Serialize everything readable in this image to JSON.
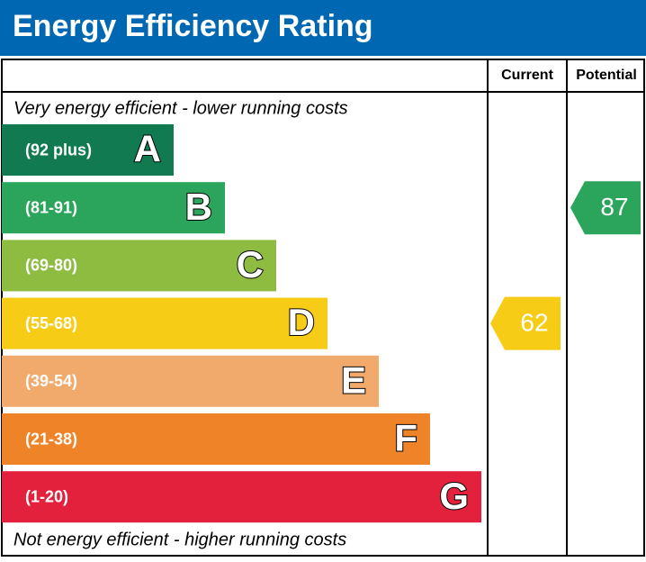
{
  "header": {
    "title": "Energy Efficiency Rating"
  },
  "columns": [
    "Current",
    "Potential"
  ],
  "top_note": "Very energy efficient - lower running costs",
  "bottom_note": "Not energy efficient - higher running costs",
  "bands": [
    {
      "range": "(92 plus)",
      "letter": "A",
      "color": "#117a50"
    },
    {
      "range": "(81-91)",
      "letter": "B",
      "color": "#2ba55b"
    },
    {
      "range": "(69-80)",
      "letter": "C",
      "color": "#8dbc41"
    },
    {
      "range": "(55-68)",
      "letter": "D",
      "color": "#f6cc17"
    },
    {
      "range": "(39-54)",
      "letter": "E",
      "color": "#f2aa6c"
    },
    {
      "range": "(21-38)",
      "letter": "F",
      "color": "#ee8327"
    },
    {
      "range": "(1-20)",
      "letter": "G",
      "color": "#e3213c"
    }
  ],
  "current": {
    "value": 62
  },
  "potential": {
    "value": 87
  }
}
